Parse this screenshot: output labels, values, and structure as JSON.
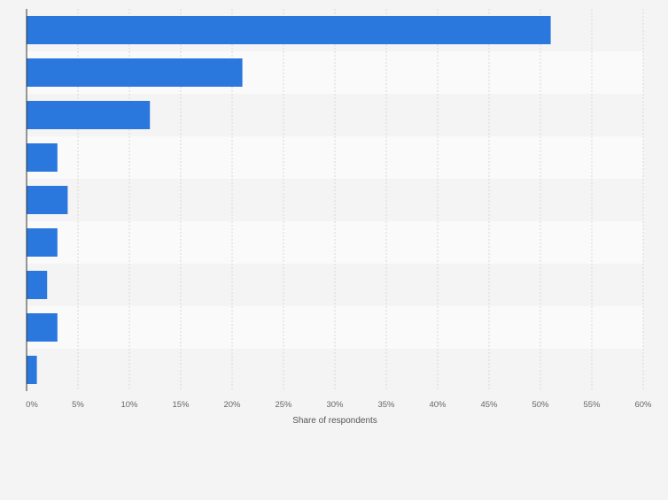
{
  "chart_data": {
    "type": "bar",
    "orientation": "horizontal",
    "categories": [
      "",
      "",
      "",
      "",
      "",
      "",
      "",
      "",
      ""
    ],
    "values": [
      51,
      21,
      12,
      3,
      4,
      3,
      2,
      3,
      1
    ],
    "xlabel": "Share of respondents",
    "xlim": [
      0,
      60
    ],
    "ticks": [
      "0%",
      "5%",
      "10%",
      "15%",
      "20%",
      "25%",
      "30%",
      "35%",
      "40%",
      "45%",
      "50%",
      "55%",
      "60%"
    ],
    "grid": true,
    "bar_color": "#2a77de",
    "band_colors": [
      "#f4f4f4",
      "#fafafa"
    ]
  }
}
